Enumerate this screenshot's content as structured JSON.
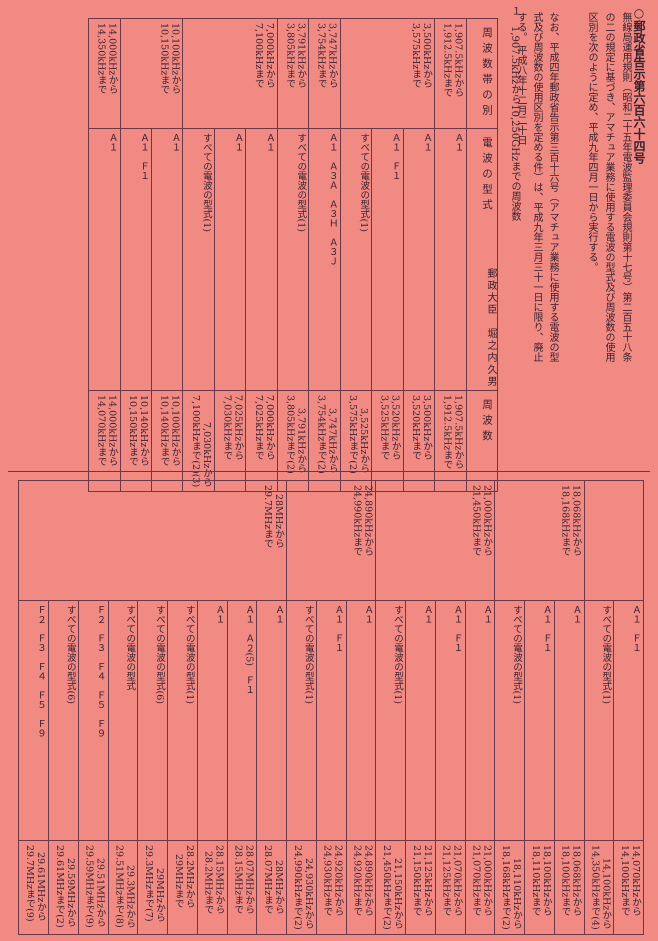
{
  "title": "○郵政省告示第六百六十四号",
  "intro": "無線局運用規則（昭和二十五年電波監理委員会規則第十七号）第二百五十八条の二の規定に基づき、アマチュア業務に使用する電波の型式及び周波数の使用区別を次のように定め、平成九年四月一日から実行する。",
  "para": "なお、平成四年郵政省告示第三百十六号（アマチュア業務に使用する電波の型式及び周波数の使用区別を定める件）は、平成九年三月三十一日に限り、廃止する。",
  "date": "平成八年十二月二十日",
  "signer": "郵政大臣　堀之内久男",
  "section1": "１　1,907.5kHzから10,250GHzまでの周波数",
  "headers": {
    "band": "周波数帯の別",
    "main": "使用電波の型式及び周波数",
    "mode": "電波の型式",
    "freq": "周波数"
  },
  "table_top": [
    {
      "band": "1,907.5kHzから\n1,912.5kHzまで",
      "rows": [
        {
          "mode": "Ａ１",
          "freq": "1,907.5kHzから\n1,912.5kHzまで"
        }
      ]
    },
    {
      "band": "3,500kHzから\n3,575kHzまで",
      "rows": [
        {
          "mode": "Ａ１",
          "freq": "3,500kHzから\n3,520kHzまで"
        },
        {
          "mode": "Ａ１　Ｆ１",
          "freq": "3,520kHzから\n3,525kHzまで"
        },
        {
          "mode": "すべての電波の型式(1)",
          "freq": "3,525kHzから\n3,575kHzまで(2)"
        }
      ]
    },
    {
      "band": "3,747kHzから\n3,754kHzまで",
      "rows": [
        {
          "mode": "Ａ１　Ａ３Ａ　Ａ３Ｈ　Ａ３Ｊ",
          "freq": "3,747kHzから\n3,754kHzまで(2)"
        }
      ]
    },
    {
      "band": "3,791kHzから\n3,805kHzまで",
      "rows": [
        {
          "mode": "すべての電波の型式(1)",
          "freq": "3,791kHzから\n3,805kHzまで(2)"
        }
      ]
    },
    {
      "band": "7,000kHzから\n7,100kHzまで",
      "rows": [
        {
          "mode": "Ａ１",
          "freq": "7,000kHzから\n7,025kHzまで"
        },
        {
          "mode": "Ａ１",
          "freq": "7,025kHzから\n7,030kHzまで"
        },
        {
          "mode": "すべての電波の型式(1)",
          "freq": "7,030kHzから\n7,100kHzまで(2)(3)"
        }
      ]
    },
    {
      "band": "10,100kHzから\n10,150kHzまで",
      "rows": [
        {
          "mode": "Ａ１",
          "freq": "10,100kHzから\n10,140kHzまで"
        },
        {
          "mode": "Ａ１　Ｆ１",
          "freq": "10,140kHzから\n10,150kHzまで"
        }
      ]
    },
    {
      "band": "14,000kHzから\n14,350kHzまで",
      "rows": [
        {
          "mode": "Ａ１",
          "freq": "14,000kHzから\n14,070kHzまで"
        }
      ]
    }
  ],
  "table_bottom": [
    {
      "band": "",
      "rows": [
        {
          "mode": "Ａ１　Ｆ１",
          "freq": "14,070kHzから\n14,100kHzまで"
        },
        {
          "mode": "すべての電波の型式(1)",
          "freq": "14,100kHzから\n14,350kHzまで(4)"
        }
      ]
    },
    {
      "band": "18,068kHzから\n18,168kHzまで",
      "rows": [
        {
          "mode": "Ａ１",
          "freq": "18,068kHzから\n18,100kHzまで"
        },
        {
          "mode": "Ａ１　Ｆ１",
          "freq": "18,100kHzから\n18,110kHzまで"
        },
        {
          "mode": "すべての電波の型式(1)",
          "freq": "18,110kHzから\n18,168kHzまで(2)"
        }
      ]
    },
    {
      "band": "21,000kHzから\n21,450kHzまで",
      "rows": [
        {
          "mode": "Ａ１",
          "freq": "21,000kHzから\n21,070kHzまで"
        },
        {
          "mode": "Ａ１　Ｆ１",
          "freq": "21,070kHzから\n21,125kHzまで"
        },
        {
          "mode": "Ａ１",
          "freq": "21,125kHzから\n21,150kHzまで"
        },
        {
          "mode": "すべての電波の型式(1)",
          "freq": "21,150kHzから\n21,450kHzまで(2)"
        }
      ]
    },
    {
      "band": "24,890kHzから\n24,990kHzまで",
      "rows": [
        {
          "mode": "Ａ１",
          "freq": "24,890kHzから\n24,920kHzまで"
        },
        {
          "mode": "Ａ１　Ｆ１",
          "freq": "24,920kHzから\n24,930kHzまで"
        },
        {
          "mode": "すべての電波の型式(1)",
          "freq": "24,930kHzから\n24,990kHzまで(2)"
        }
      ]
    },
    {
      "band": "28MHzから\n29.7MHzまで",
      "rows": [
        {
          "mode": "Ａ１",
          "freq": "28MHzから\n28.07MHzまで"
        },
        {
          "mode": "Ａ１　Ａ２(5)　Ｆ１",
          "freq": "28.07MHzから\n28.15MHzまで"
        },
        {
          "mode": "Ａ１",
          "freq": "28.15MHzから\n28.2MHzまで"
        },
        {
          "mode": "すべての電波の型式(1)",
          "freq": "28.2MHzから\n29MHzまで"
        },
        {
          "mode": "すべての電波の型式(6)",
          "freq": "29MHzから\n29.3MHzまで(7)"
        },
        {
          "mode": "すべての電波の型式",
          "freq": "29.3MHzから\n29.51MHzまで(8)"
        },
        {
          "mode": "Ｆ２　Ｆ３　Ｆ４　Ｆ５　Ｆ９",
          "freq": "29.51MHzから\n29.59MHzまで(9)"
        },
        {
          "mode": "すべての電波の型式(6)",
          "freq": "29.59MHzから\n29.61MHzまで(2)"
        },
        {
          "mode": "Ｆ２　Ｆ３　Ｆ４　Ｆ５　Ｆ９",
          "freq": "29.61MHzから\n29.7MHzまで(9)"
        }
      ]
    }
  ]
}
